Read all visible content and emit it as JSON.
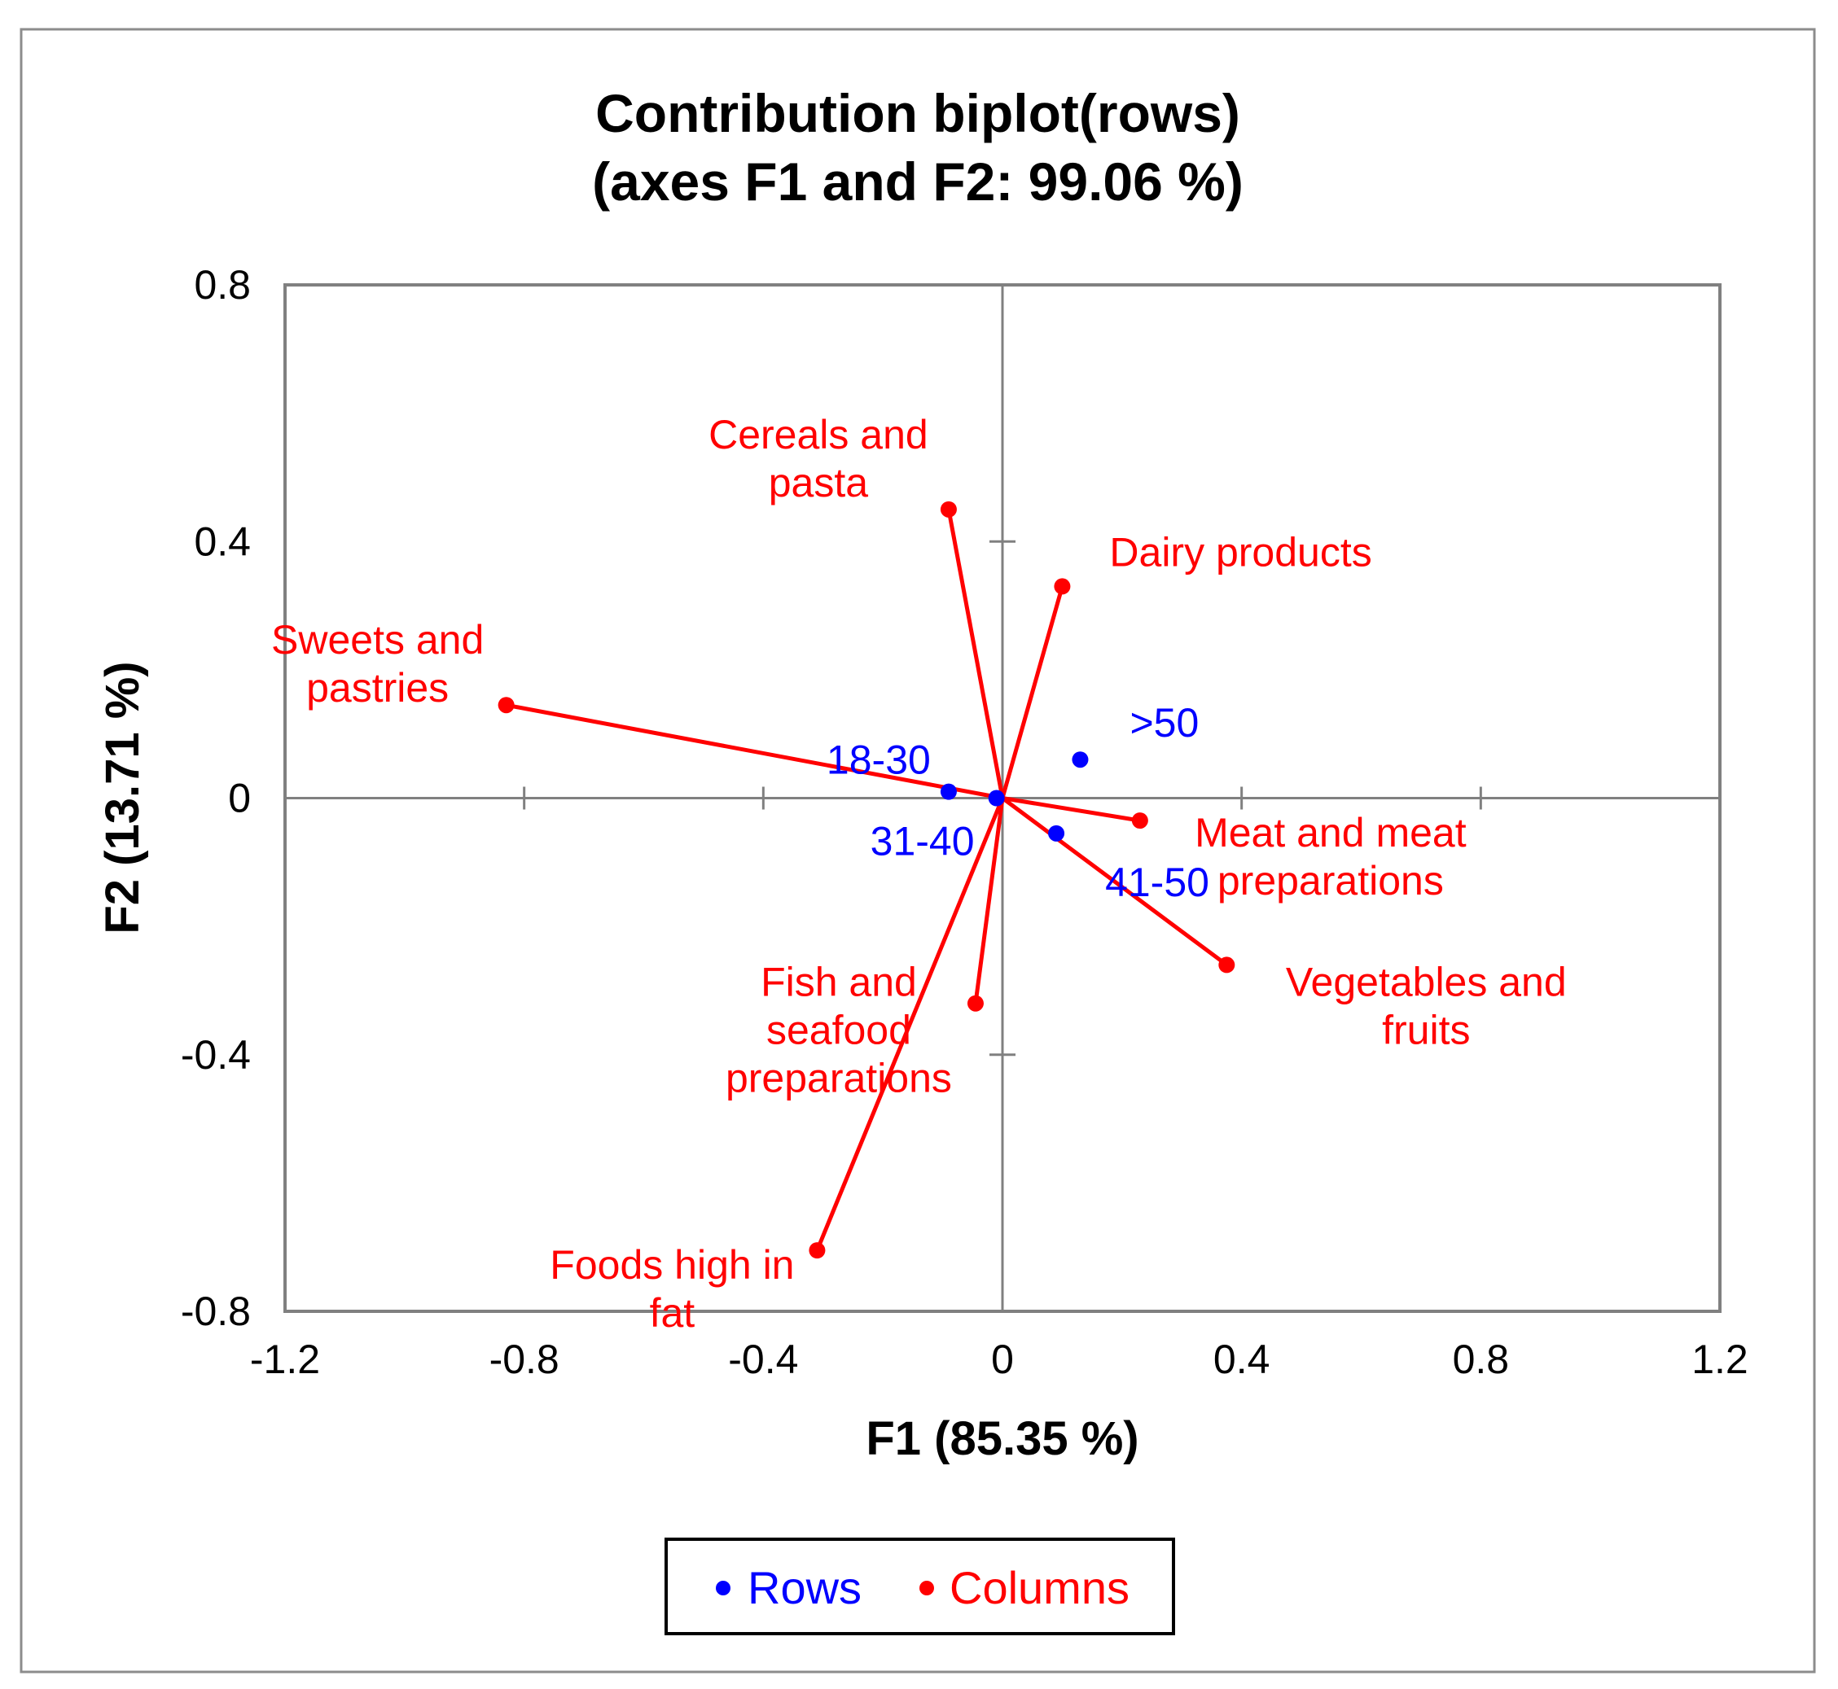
{
  "chart_data": {
    "type": "scatter",
    "title": "Contribution biplot(rows)",
    "subtitle": "(axes F1 and F2: 99.06 %)",
    "xlabel": "F1 (85.35 %)",
    "ylabel": "F2 (13.71 %)",
    "xlim": [
      -1.2,
      1.2
    ],
    "ylim": [
      -0.8,
      0.8
    ],
    "x_ticks": [
      "-1.2",
      "-0.8",
      "-0.4",
      "0",
      "0.4",
      "0.8",
      "1.2"
    ],
    "x_tick_values": [
      -1.2,
      -0.8,
      -0.4,
      0,
      0.4,
      0.8,
      1.2
    ],
    "y_ticks": [
      "0.8",
      "0.4",
      "0",
      "-0.4",
      "-0.8"
    ],
    "y_tick_values": [
      0.8,
      0.4,
      0,
      -0.4,
      -0.8
    ],
    "grid": false,
    "legend": [
      {
        "name": "Rows",
        "color": "#0000ff"
      },
      {
        "name": "Columns",
        "color": "#ff0000"
      }
    ],
    "series": [
      {
        "name": "Rows",
        "color": "#0000ff",
        "points": [
          {
            "label": "18-30",
            "x": -0.09,
            "y": 0.01
          },
          {
            "label": "31-40",
            "x": -0.01,
            "y": 0.0
          },
          {
            "label": "41-50",
            "x": 0.09,
            "y": -0.055
          },
          {
            "label": ">50",
            "x": 0.13,
            "y": 0.06
          }
        ]
      },
      {
        "name": "Columns",
        "color": "#ff0000",
        "points": [
          {
            "label": "Cereals and pasta",
            "lines": [
              "Cereals and",
              "pasta"
            ],
            "x": -0.09,
            "y": 0.45
          },
          {
            "label": "Dairy products",
            "lines": [
              "Dairy products"
            ],
            "x": 0.1,
            "y": 0.33
          },
          {
            "label": "Sweets and pastries",
            "lines": [
              "Sweets and",
              "pastries"
            ],
            "x": -0.83,
            "y": 0.145
          },
          {
            "label": "Meat and meat preparations",
            "lines": [
              "Meat and meat",
              "preparations"
            ],
            "x": 0.23,
            "y": -0.035
          },
          {
            "label": "Vegetables and fruits",
            "lines": [
              "Vegetables and",
              "fruits"
            ],
            "x": 0.375,
            "y": -0.26
          },
          {
            "label": "Fish and seafood preparations",
            "lines": [
              "Fish and",
              "seafood",
              "preparations"
            ],
            "x": -0.045,
            "y": -0.32
          },
          {
            "label": "Foods high in fat",
            "lines": [
              "Foods high in",
              "fat"
            ],
            "x": -0.31,
            "y": -0.705
          }
        ]
      }
    ]
  }
}
